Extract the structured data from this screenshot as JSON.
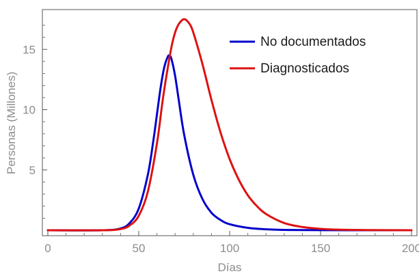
{
  "chart_data": {
    "type": "line",
    "title": "",
    "xlabel": "Días",
    "ylabel": "Personas (Millones)",
    "xlim": [
      -3,
      203
    ],
    "ylim": [
      -0.45,
      18.3
    ],
    "x_ticks": [
      0,
      50,
      100,
      150,
      200
    ],
    "x_tick_labels": [
      "0",
      "50",
      "100",
      "150",
      "200"
    ],
    "y_ticks": [
      5,
      10,
      15
    ],
    "y_tick_labels": [
      "5",
      "10",
      "15"
    ],
    "grid": false,
    "legend": "top-right",
    "series": [
      {
        "name": "No documentados",
        "color": "#0000cc",
        "points": [
          [
            0,
            0
          ],
          [
            30,
            0
          ],
          [
            40,
            0.15
          ],
          [
            45,
            0.6
          ],
          [
            50,
            1.8
          ],
          [
            55,
            4.6
          ],
          [
            58,
            7.4
          ],
          [
            60,
            9.6
          ],
          [
            62,
            11.8
          ],
          [
            64,
            13.5
          ],
          [
            66,
            14.4
          ],
          [
            67,
            14.45
          ],
          [
            68,
            14.2
          ],
          [
            70,
            12.8
          ],
          [
            72,
            10.8
          ],
          [
            75,
            7.9
          ],
          [
            80,
            4.6
          ],
          [
            85,
            2.6
          ],
          [
            90,
            1.45
          ],
          [
            95,
            0.85
          ],
          [
            100,
            0.5
          ],
          [
            110,
            0.2
          ],
          [
            120,
            0.08
          ],
          [
            130,
            0.03
          ],
          [
            150,
            0.01
          ],
          [
            200,
            0
          ]
        ]
      },
      {
        "name": "Diagnosticados",
        "color": "#dd1111",
        "points": [
          [
            0,
            0
          ],
          [
            30,
            0
          ],
          [
            40,
            0.1
          ],
          [
            45,
            0.4
          ],
          [
            50,
            1.2
          ],
          [
            55,
            3.2
          ],
          [
            60,
            7.2
          ],
          [
            63,
            10.6
          ],
          [
            65,
            12.6
          ],
          [
            68,
            15.2
          ],
          [
            70,
            16.4
          ],
          [
            72,
            17.1
          ],
          [
            74,
            17.45
          ],
          [
            75,
            17.5
          ],
          [
            76,
            17.45
          ],
          [
            78,
            17.1
          ],
          [
            80,
            16.4
          ],
          [
            85,
            13.8
          ],
          [
            90,
            10.8
          ],
          [
            95,
            8.1
          ],
          [
            100,
            5.9
          ],
          [
            105,
            4.2
          ],
          [
            110,
            2.9
          ],
          [
            115,
            2.0
          ],
          [
            120,
            1.35
          ],
          [
            130,
            0.6
          ],
          [
            140,
            0.27
          ],
          [
            150,
            0.12
          ],
          [
            160,
            0.05
          ],
          [
            175,
            0.02
          ],
          [
            200,
            0
          ]
        ]
      }
    ]
  }
}
